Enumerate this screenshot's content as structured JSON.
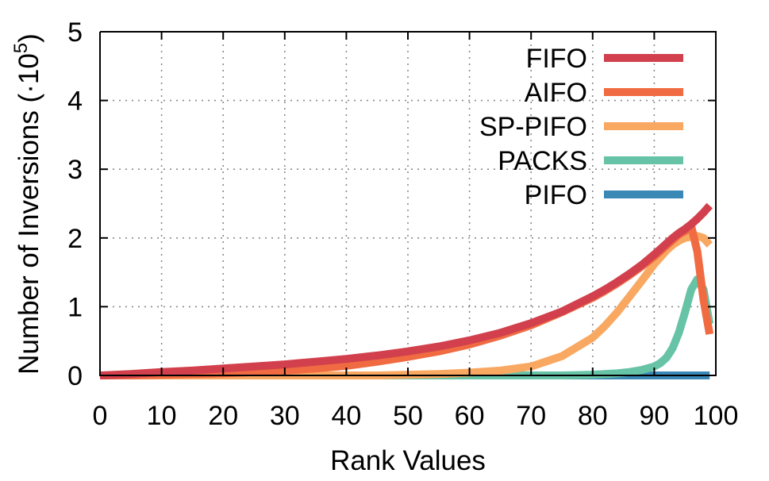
{
  "chart_data": {
    "type": "line",
    "title": "",
    "xlabel": "Rank Values",
    "ylabel_main": "Number of Inversions (·10",
    "ylabel_exp": "5",
    "ylabel_close": ")",
    "xlim": [
      0,
      100
    ],
    "ylim": [
      0,
      5
    ],
    "xticks": [
      0,
      10,
      20,
      30,
      40,
      50,
      60,
      70,
      80,
      90,
      100
    ],
    "yticks": [
      0,
      1,
      2,
      3,
      4,
      5
    ],
    "grid": true,
    "legend_position": "top-right",
    "x": [
      0,
      5,
      10,
      15,
      20,
      25,
      30,
      35,
      40,
      45,
      50,
      55,
      60,
      65,
      70,
      75,
      80,
      82,
      84,
      86,
      88,
      90,
      91,
      92,
      93,
      94,
      95,
      96,
      97,
      98,
      99
    ],
    "series": [
      {
        "name": "FIFO",
        "color": "#d2404d",
        "values": [
          0.0,
          0.02,
          0.05,
          0.07,
          0.1,
          0.13,
          0.16,
          0.2,
          0.24,
          0.29,
          0.35,
          0.42,
          0.51,
          0.62,
          0.76,
          0.93,
          1.15,
          1.25,
          1.36,
          1.48,
          1.61,
          1.76,
          1.84,
          1.92,
          2.0,
          2.07,
          2.13,
          2.2,
          2.28,
          2.37,
          2.47
        ]
      },
      {
        "name": "AIFO",
        "color": "#f06b42",
        "values": [
          0.0,
          0.0,
          0.01,
          0.02,
          0.03,
          0.05,
          0.07,
          0.1,
          0.14,
          0.2,
          0.27,
          0.35,
          0.45,
          0.58,
          0.73,
          0.92,
          1.13,
          1.23,
          1.34,
          1.46,
          1.59,
          1.73,
          1.81,
          1.89,
          1.97,
          2.05,
          2.1,
          2.17,
          1.8,
          1.1,
          0.6
        ]
      },
      {
        "name": "SP-PIFO",
        "color": "#f9a862",
        "values": [
          0.0,
          0.0,
          0.0,
          0.0,
          0.0,
          0.0,
          0.0,
          0.0,
          0.0,
          0.0,
          0.01,
          0.02,
          0.04,
          0.07,
          0.13,
          0.28,
          0.55,
          0.72,
          0.92,
          1.15,
          1.38,
          1.62,
          1.72,
          1.82,
          1.9,
          1.96,
          2.0,
          2.02,
          2.03,
          2.0,
          1.9
        ]
      },
      {
        "name": "PACKS",
        "color": "#66c3a5",
        "values": [
          0.0,
          0.0,
          0.0,
          0.0,
          0.0,
          0.0,
          0.0,
          0.0,
          0.0,
          0.0,
          0.0,
          0.0,
          0.0,
          0.0,
          0.0,
          0.0,
          0.01,
          0.02,
          0.03,
          0.05,
          0.08,
          0.13,
          0.18,
          0.26,
          0.4,
          0.62,
          0.92,
          1.25,
          1.4,
          1.25,
          0.75
        ]
      },
      {
        "name": "PIFO",
        "color": "#3a88b6",
        "values": [
          0.0,
          0.0,
          0.0,
          0.0,
          0.0,
          0.0,
          0.0,
          0.0,
          0.0,
          0.0,
          0.0,
          0.0,
          0.0,
          0.0,
          0.0,
          0.0,
          0.0,
          0.0,
          0.0,
          0.0,
          0.0,
          0.0,
          0.0,
          0.0,
          0.0,
          0.0,
          0.0,
          0.0,
          0.0,
          0.0,
          0.0
        ]
      }
    ]
  }
}
